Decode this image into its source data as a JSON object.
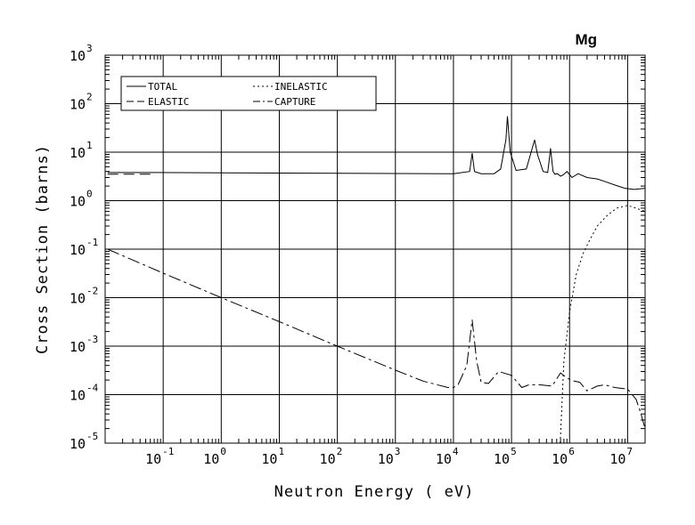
{
  "chart_data": {
    "type": "line",
    "title": "Mg",
    "xlabel": "Neutron Energy ( eV)",
    "ylabel": "Cross Section (barns)",
    "x_scale": "log",
    "y_scale": "log",
    "xlim": [
      0.01,
      20000000
    ],
    "ylim": [
      1e-05,
      1000
    ],
    "x_ticks": [
      {
        "exp": "-1",
        "value": 0.1
      },
      {
        "exp": "0",
        "value": 1
      },
      {
        "exp": "1",
        "value": 10
      },
      {
        "exp": "2",
        "value": 100
      },
      {
        "exp": "3",
        "value": 1000
      },
      {
        "exp": "4",
        "value": 10000
      },
      {
        "exp": "5",
        "value": 100000
      },
      {
        "exp": "6",
        "value": 1000000
      },
      {
        "exp": "7",
        "value": 10000000
      }
    ],
    "y_ticks": [
      {
        "exp": "-5",
        "value": 1e-05
      },
      {
        "exp": "-4",
        "value": 0.0001
      },
      {
        "exp": "-3",
        "value": 0.001
      },
      {
        "exp": "-2",
        "value": 0.01
      },
      {
        "exp": "-1",
        "value": 0.1
      },
      {
        "exp": "0",
        "value": 1
      },
      {
        "exp": "1",
        "value": 10
      },
      {
        "exp": "2",
        "value": 100
      },
      {
        "exp": "3",
        "value": 1000
      }
    ],
    "tick_base": "10",
    "grid": true,
    "legend_position": "top-left",
    "series": [
      {
        "name": "TOTAL",
        "dash": "",
        "x": [
          0.011,
          0.07,
          10000,
          19000,
          21000,
          23000,
          30000,
          50000,
          65000,
          80000,
          85000,
          95000,
          120000,
          180000,
          250000,
          280000,
          350000,
          420000,
          470000,
          500000,
          520000,
          560000,
          620000,
          700000,
          780000,
          900000,
          1100000,
          1400000,
          2000000,
          3000000,
          4000000,
          6000000,
          9000000,
          13000000,
          20000000
        ],
        "y": [
          3.8,
          3.8,
          3.6,
          4.0,
          9.5,
          4.0,
          3.6,
          3.6,
          4.5,
          18,
          55,
          10,
          4.2,
          4.5,
          18,
          9,
          4.0,
          3.8,
          12,
          6,
          4.0,
          3.5,
          3.6,
          3.2,
          3.4,
          4.0,
          3.0,
          3.6,
          3.0,
          2.8,
          2.5,
          2.1,
          1.8,
          1.7,
          1.8
        ]
      },
      {
        "name": "ELASTIC",
        "dash": "12,6",
        "x": [
          0.011,
          0.07
        ],
        "y": [
          3.5,
          3.5
        ]
      },
      {
        "name": "INELASTIC",
        "dash": "2,3",
        "x": [
          690000,
          800000,
          1000000,
          1300000,
          1700000,
          2200000,
          3000000,
          4500000,
          6500000,
          10000000,
          14000000,
          20000000
        ],
        "y": [
          1e-05,
          0.0005,
          0.005,
          0.03,
          0.08,
          0.15,
          0.3,
          0.5,
          0.7,
          0.8,
          0.7,
          0.6
        ]
      },
      {
        "name": "CAPTURE",
        "dash": "14,4,3,4",
        "x": [
          0.011,
          0.1,
          1,
          10,
          100,
          1000,
          3000,
          8000,
          10000,
          12000,
          17000,
          21000,
          25000,
          30000,
          40000,
          60000,
          100000,
          150000,
          200000,
          300000,
          500000,
          700000,
          900000,
          1200000,
          1500000,
          2000000,
          3000000,
          4000000,
          6000000,
          10000000,
          14000000,
          17000000,
          20000000
        ],
        "y": [
          0.1,
          0.032,
          0.01,
          0.0032,
          0.001,
          0.00032,
          0.00019,
          0.00014,
          0.00014,
          0.00016,
          0.0004,
          0.0035,
          0.0005,
          0.00018,
          0.00017,
          0.0003,
          0.00025,
          0.00014,
          0.00016,
          0.00016,
          0.00015,
          0.00028,
          0.00022,
          0.00019,
          0.00018,
          0.00012,
          0.00015,
          0.00016,
          0.00014,
          0.00013,
          8e-05,
          4e-05,
          2e-05
        ]
      }
    ]
  }
}
